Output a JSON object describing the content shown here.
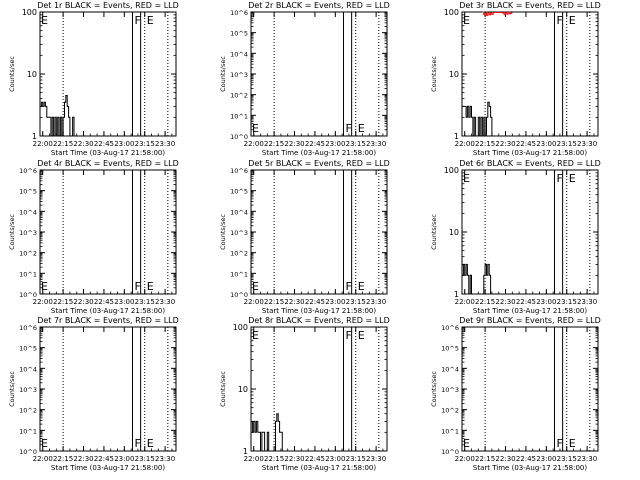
{
  "common": {
    "xlabel": "Start Time (03-Aug-17 21:58:00)",
    "ylabel": "Counts/sec",
    "xticks": [
      "22:00",
      "22:15",
      "22:30",
      "22:45",
      "23:00",
      "23:15",
      "23:30"
    ],
    "dotted_lines_at": [
      "22:15",
      "23:15",
      "23:32"
    ],
    "solid_lines_at": [
      "23:06",
      "23:12"
    ],
    "event_labels": [
      "F",
      "E"
    ],
    "colors": {
      "events": "#000000",
      "lld": "#ff0000"
    }
  },
  "chart_data": [
    {
      "type": "line",
      "title": "Det 1r BLACK = Events, RED = LLD",
      "scale": "log",
      "ylim": [
        1,
        100
      ],
      "yticks": [
        "1",
        "10",
        "100"
      ],
      "series": [
        {
          "color": "#000000",
          "points": [
            [
              -2,
              3
            ],
            [
              -1,
              3.5
            ],
            [
              0,
              3
            ],
            [
              1,
              3.5
            ],
            [
              2,
              3
            ],
            [
              3,
              2
            ],
            [
              4,
              2
            ],
            [
              5,
              2
            ],
            [
              6,
              1
            ],
            [
              7,
              2
            ],
            [
              8,
              1
            ],
            [
              9,
              2
            ],
            [
              10,
              1
            ],
            [
              11,
              2
            ],
            [
              12,
              1
            ],
            [
              13,
              2
            ],
            [
              14,
              1
            ],
            [
              15,
              2
            ],
            [
              16,
              3.5
            ],
            [
              17,
              4.5
            ],
            [
              18,
              3
            ],
            [
              19,
              2
            ],
            [
              20,
              1
            ],
            [
              21,
              1
            ],
            [
              22,
              2
            ],
            [
              23,
              1
            ]
          ]
        }
      ],
      "marks": {
        "F": "high",
        "E": "high"
      }
    },
    {
      "type": "line",
      "title": "Det 2r BLACK = Events, RED = LLD",
      "scale": "sci",
      "ylim": [
        1,
        1000000
      ],
      "yticks": [
        "10^0",
        "10^1",
        "10^2",
        "10^3",
        "10^4",
        "10^5",
        "10^6"
      ],
      "series": [],
      "marks": {
        "F": "low",
        "E": "low"
      }
    },
    {
      "type": "line",
      "title": "Det 3r BLACK = Events, RED = LLD",
      "scale": "log",
      "ylim": [
        1,
        100
      ],
      "yticks": [
        "1",
        "10",
        "100"
      ],
      "series": [
        {
          "color": "#000000",
          "points": [
            [
              -2,
              3
            ],
            [
              -1,
              3
            ],
            [
              0,
              3
            ],
            [
              1,
              2
            ],
            [
              2,
              3
            ],
            [
              3,
              2
            ],
            [
              4,
              3
            ],
            [
              5,
              2
            ],
            [
              6,
              1
            ],
            [
              7,
              2
            ],
            [
              8,
              1
            ],
            [
              9,
              1
            ],
            [
              10,
              2
            ],
            [
              11,
              1
            ],
            [
              12,
              2
            ],
            [
              13,
              1
            ],
            [
              14,
              2
            ],
            [
              15,
              1
            ],
            [
              16,
              2
            ],
            [
              17,
              3.5
            ],
            [
              18,
              3
            ],
            [
              19,
              2
            ],
            [
              20,
              1
            ],
            [
              21,
              1
            ]
          ]
        },
        {
          "color": "#ff0000",
          "points": [
            [
              13,
              100
            ],
            [
              14,
              90
            ],
            [
              15,
              95
            ],
            [
              16,
              88
            ],
            [
              17,
              97
            ],
            [
              18,
              90
            ],
            [
              19,
              96
            ],
            [
              20,
              92
            ],
            [
              21,
              98
            ],
            [
              28,
              96
            ],
            [
              29,
              90
            ],
            [
              30,
              97
            ],
            [
              31,
              92
            ],
            [
              32,
              99
            ],
            [
              33,
              94
            ],
            [
              34,
              96
            ]
          ]
        }
      ],
      "marks": {
        "F": "high",
        "E": "high"
      }
    },
    {
      "type": "line",
      "title": "Det 4r BLACK = Events, RED = LLD",
      "scale": "sci",
      "ylim": [
        1,
        1000000
      ],
      "yticks": [
        "10^0",
        "10^1",
        "10^2",
        "10^3",
        "10^4",
        "10^5",
        "10^6"
      ],
      "series": [],
      "marks": {
        "F": "low",
        "E": "low"
      }
    },
    {
      "type": "line",
      "title": "Det 5r BLACK = Events, RED = LLD",
      "scale": "sci",
      "ylim": [
        1,
        1000000
      ],
      "yticks": [
        "10^0",
        "10^1",
        "10^2",
        "10^3",
        "10^4",
        "10^5",
        "10^6"
      ],
      "series": [],
      "marks": {
        "F": "low",
        "E": "low"
      }
    },
    {
      "type": "line",
      "title": "Det 6r BLACK = Events, RED = LLD",
      "scale": "log",
      "ylim": [
        1,
        100
      ],
      "yticks": [
        "1",
        "10",
        "100"
      ],
      "series": [
        {
          "color": "#000000",
          "points": [
            [
              -2,
              2
            ],
            [
              -1,
              3
            ],
            [
              0,
              2
            ],
            [
              1,
              3
            ],
            [
              2,
              2
            ],
            [
              3,
              1
            ],
            [
              4,
              2
            ],
            [
              5,
              1
            ],
            [
              6,
              1
            ],
            [
              13,
              1
            ],
            [
              14,
              2
            ],
            [
              15,
              3
            ],
            [
              16,
              2
            ],
            [
              17,
              3
            ],
            [
              18,
              2
            ],
            [
              19,
              1
            ]
          ]
        }
      ],
      "marks": {
        "F": "high",
        "E": "high"
      }
    },
    {
      "type": "line",
      "title": "Det 7r BLACK = Events, RED = LLD",
      "scale": "sci",
      "ylim": [
        1,
        1000000
      ],
      "yticks": [
        "10^0",
        "10^1",
        "10^2",
        "10^3",
        "10^4",
        "10^5",
        "10^6"
      ],
      "series": [],
      "marks": {
        "F": "low",
        "E": "low"
      }
    },
    {
      "type": "line",
      "title": "Det 8r BLACK = Events, RED = LLD",
      "scale": "log",
      "ylim": [
        1,
        100
      ],
      "yticks": [
        "1",
        "10",
        "100"
      ],
      "series": [
        {
          "color": "#000000",
          "points": [
            [
              -2,
              3
            ],
            [
              -1,
              2
            ],
            [
              0,
              3
            ],
            [
              1,
              2
            ],
            [
              2,
              3
            ],
            [
              3,
              2
            ],
            [
              4,
              2
            ],
            [
              5,
              1
            ],
            [
              6,
              2
            ],
            [
              7,
              2
            ],
            [
              8,
              1
            ],
            [
              9,
              1
            ],
            [
              10,
              2
            ],
            [
              11,
              1
            ],
            [
              16,
              3
            ],
            [
              17,
              4
            ],
            [
              18,
              3
            ],
            [
              19,
              2
            ],
            [
              20,
              2
            ],
            [
              21,
              1
            ]
          ]
        }
      ],
      "marks": {
        "F": "high",
        "E": "high"
      }
    },
    {
      "type": "line",
      "title": "Det 9r BLACK = Events, RED = LLD",
      "scale": "sci",
      "ylim": [
        1,
        1000000
      ],
      "yticks": [
        "10^0",
        "10^1",
        "10^2",
        "10^3",
        "10^4",
        "10^5",
        "10^6"
      ],
      "series": [],
      "marks": {
        "F": "low",
        "E": "low"
      }
    }
  ]
}
